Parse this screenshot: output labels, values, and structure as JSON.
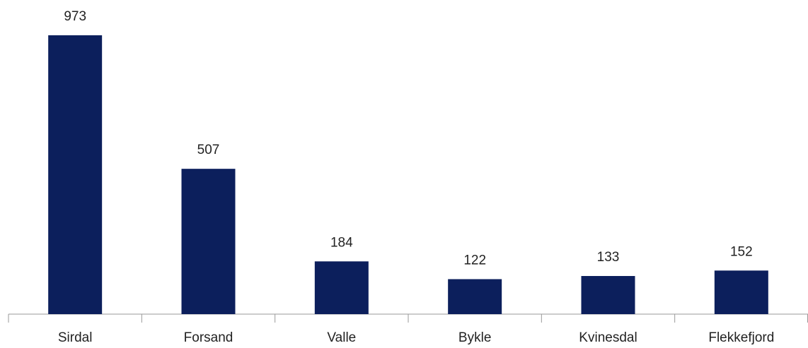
{
  "chart_data": {
    "type": "bar",
    "categories": [
      "Sirdal",
      "Forsand",
      "Valle",
      "Bykle",
      "Kvinesdal",
      "Flekkefjord"
    ],
    "values": [
      973,
      507,
      184,
      122,
      133,
      152
    ],
    "color": "#0c1f5c"
  }
}
